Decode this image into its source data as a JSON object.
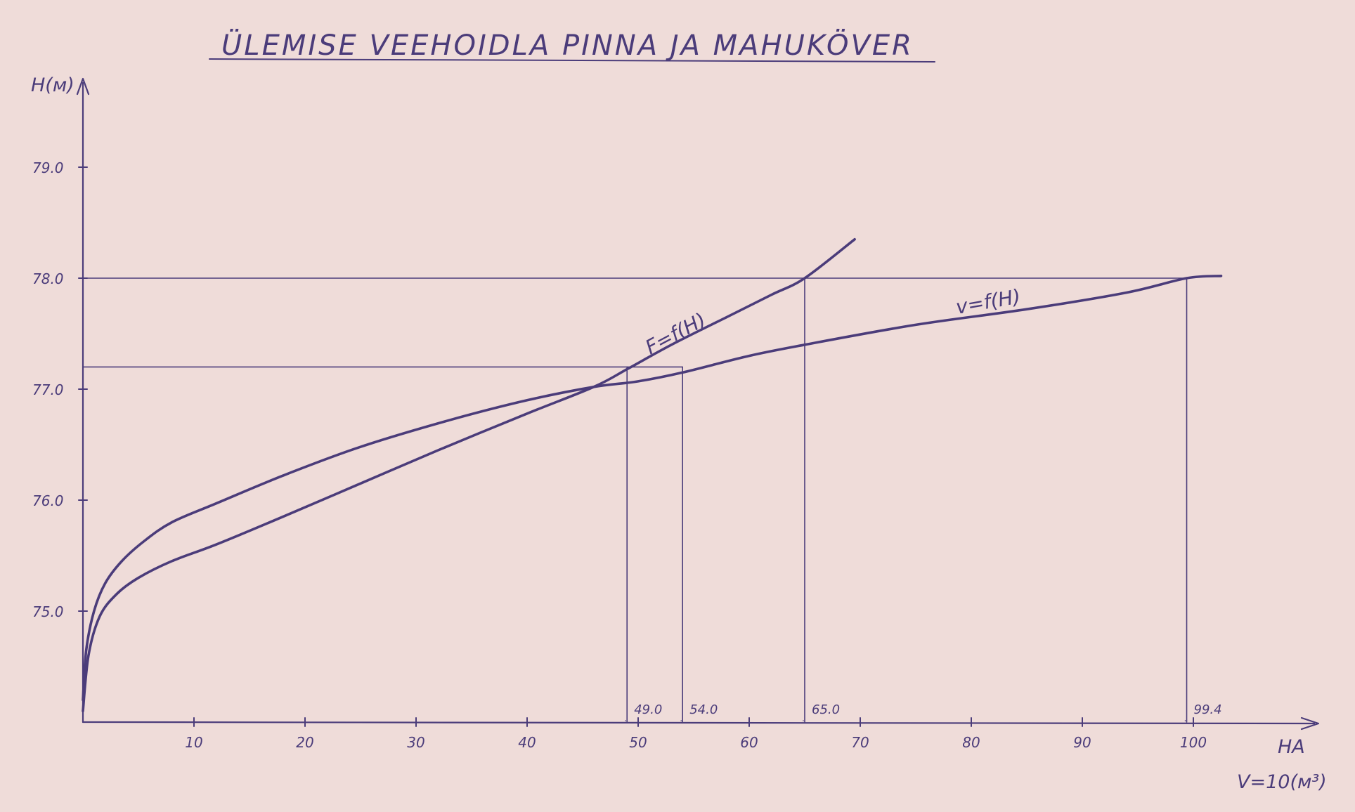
{
  "chart_data": {
    "type": "line",
    "title": "ÜLEMISE VEEHOIDLA PINNA JA MAHUKÖVER",
    "ylabel": "H(м)",
    "xlabel": "HA",
    "xlabel2": "V=10(м³)",
    "xlim": [
      0,
      110
    ],
    "ylim": [
      74.0,
      80.0
    ],
    "xticks": [
      10,
      20,
      30,
      40,
      50,
      60,
      70,
      80,
      90,
      100
    ],
    "yticks": [
      75.0,
      76.0,
      77.0,
      78.0,
      79.0
    ],
    "xtick_labels": [
      "10",
      "20",
      "30",
      "40",
      "50",
      "60",
      "70",
      "80",
      "90",
      "100"
    ],
    "ytick_labels": [
      "75.0",
      "76.0",
      "77.0",
      "78.0",
      "79.0"
    ],
    "grid": false,
    "series": [
      {
        "name": "F=f(H)",
        "x": [
          0,
          0.5,
          1.5,
          3,
          5,
          8,
          12,
          18,
          25,
          32,
          40,
          46,
          49,
          53,
          58,
          62,
          65,
          69.5
        ],
        "y": [
          74.1,
          74.6,
          74.95,
          75.15,
          75.3,
          75.45,
          75.6,
          75.85,
          76.15,
          76.45,
          76.78,
          77.02,
          77.18,
          77.4,
          77.65,
          77.85,
          78.0,
          78.35
        ]
      },
      {
        "name": "v=f(H)",
        "x": [
          0,
          0.3,
          1,
          2,
          3.5,
          5.5,
          8,
          12,
          18,
          25,
          33,
          40,
          46,
          50,
          54,
          60,
          65,
          75,
          85,
          94,
          99.4,
          102.5
        ],
        "y": [
          74.2,
          74.65,
          75.0,
          75.25,
          75.45,
          75.63,
          75.8,
          75.97,
          76.22,
          76.48,
          76.72,
          76.9,
          77.02,
          77.07,
          77.15,
          77.3,
          77.4,
          77.58,
          77.72,
          77.87,
          78.0,
          78.02
        ]
      }
    ],
    "reference_lines": {
      "horizontal": [
        78.0,
        77.2
      ],
      "vertical": [
        49.0,
        54.0,
        65.0,
        99.4
      ]
    },
    "annotations": [
      "49.0",
      "54.0",
      "65.0",
      "99.4"
    ]
  }
}
